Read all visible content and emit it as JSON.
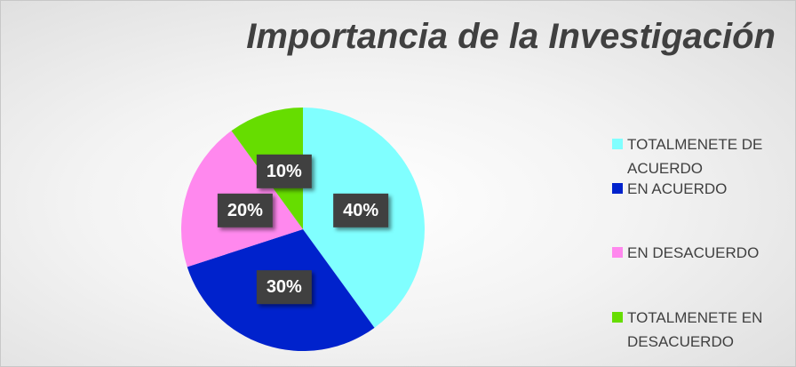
{
  "chart_data": {
    "type": "pie",
    "title": "Importancia de la Investigación",
    "categories": [
      "TOTALMENETE DE ACUERDO",
      "EN ACUERDO",
      "EN DESACUERDO",
      "TOTALMENETE EN DESACUERDO"
    ],
    "values": [
      40,
      30,
      20,
      10
    ],
    "value_labels": [
      "40%",
      "30%",
      "20%",
      "10%"
    ],
    "colors": [
      "#80ffff",
      "#0022cc",
      "#ff88ee",
      "#66dd00"
    ],
    "legend": "right"
  }
}
